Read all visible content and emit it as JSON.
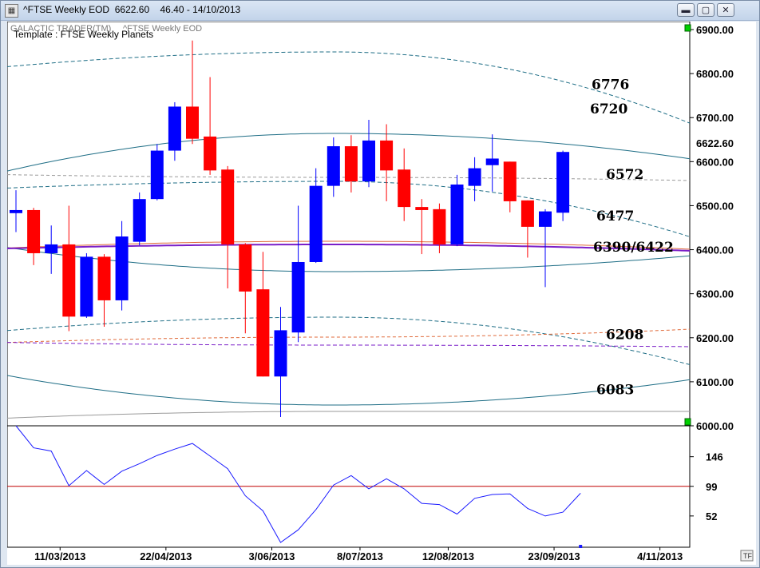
{
  "window": {
    "title": "^FTSE Weekly EOD  6622.60    46.40 - 14/10/2013",
    "minimize_glyph": "▬",
    "maximize_glyph": "▢",
    "close_glyph": "✕"
  },
  "chart_header": {
    "brand": "GALACTIC TRADER(TM)",
    "symbol": "^FTSE Weekly EOD",
    "template": "Template : FTSE Weekly Planets"
  },
  "corner_button": "TF",
  "colors": {
    "up": "#0000ff",
    "down": "#ff0000",
    "teal": "#1f6e86",
    "purple": "#7a1ec8",
    "orange": "#e06a3a",
    "oscillator": "#1a1aff",
    "ref_line": "#c00000",
    "marker": "#00d000"
  },
  "chart_data": [
    {
      "type": "candlestick",
      "ylim": [
        6000,
        6900
      ],
      "y_ticks": [
        6000,
        6100,
        6200,
        6300,
        6400,
        6500,
        6600,
        6700,
        6800,
        6900
      ],
      "y_tick_labels": [
        "6000.00",
        "6100.00",
        "6200.00",
        "6300.00",
        "6400.00",
        "6500.00",
        "6600.00",
        "6700.00",
        "6800.00",
        "6900.00"
      ],
      "last_price_label": "6622.60",
      "last_price": 6622.6,
      "x_labels": [
        "11/03/2013",
        "22/04/2013",
        "3/06/2013",
        "8/07/2013",
        "12/08/2013",
        "23/09/2013",
        "4/11/2013"
      ],
      "x_label_weeks": [
        2.5,
        8.5,
        14.5,
        19.5,
        24.5,
        30.5,
        36.5
      ],
      "candles": [
        {
          "o": 6483,
          "h": 6535,
          "l": 6440,
          "c": 6490
        },
        {
          "o": 6490,
          "h": 6495,
          "l": 6365,
          "c": 6392
        },
        {
          "o": 6392,
          "h": 6455,
          "l": 6345,
          "c": 6412
        },
        {
          "o": 6412,
          "h": 6500,
          "l": 6215,
          "c": 6248
        },
        {
          "o": 6248,
          "h": 6392,
          "l": 6245,
          "c": 6384
        },
        {
          "o": 6384,
          "h": 6390,
          "l": 6225,
          "c": 6285
        },
        {
          "o": 6285,
          "h": 6465,
          "l": 6262,
          "c": 6430
        },
        {
          "o": 6418,
          "h": 6530,
          "l": 6410,
          "c": 6515
        },
        {
          "o": 6515,
          "h": 6640,
          "l": 6512,
          "c": 6625
        },
        {
          "o": 6625,
          "h": 6735,
          "l": 6602,
          "c": 6725
        },
        {
          "o": 6725,
          "h": 6875,
          "l": 6640,
          "c": 6652
        },
        {
          "o": 6657,
          "h": 6792,
          "l": 6570,
          "c": 6580
        },
        {
          "o": 6582,
          "h": 6590,
          "l": 6312,
          "c": 6412
        },
        {
          "o": 6412,
          "h": 6415,
          "l": 6210,
          "c": 6305
        },
        {
          "o": 6310,
          "h": 6395,
          "l": 6112,
          "c": 6112
        },
        {
          "o": 6112,
          "h": 6270,
          "l": 6020,
          "c": 6217
        },
        {
          "o": 6212,
          "h": 6500,
          "l": 6190,
          "c": 6372
        },
        {
          "o": 6372,
          "h": 6585,
          "l": 6370,
          "c": 6545
        },
        {
          "o": 6545,
          "h": 6655,
          "l": 6520,
          "c": 6635
        },
        {
          "o": 6635,
          "h": 6660,
          "l": 6530,
          "c": 6555
        },
        {
          "o": 6555,
          "h": 6695,
          "l": 6542,
          "c": 6648
        },
        {
          "o": 6648,
          "h": 6685,
          "l": 6510,
          "c": 6580
        },
        {
          "o": 6582,
          "h": 6630,
          "l": 6465,
          "c": 6497
        },
        {
          "o": 6497,
          "h": 6515,
          "l": 6390,
          "c": 6490
        },
        {
          "o": 6492,
          "h": 6505,
          "l": 6392,
          "c": 6412
        },
        {
          "o": 6412,
          "h": 6570,
          "l": 6408,
          "c": 6548
        },
        {
          "o": 6545,
          "h": 6610,
          "l": 6510,
          "c": 6585
        },
        {
          "o": 6592,
          "h": 6662,
          "l": 6532,
          "c": 6607
        },
        {
          "o": 6600,
          "h": 6600,
          "l": 6485,
          "c": 6510
        },
        {
          "o": 6512,
          "h": 6512,
          "l": 6382,
          "c": 6452
        },
        {
          "o": 6452,
          "h": 6492,
          "l": 6315,
          "c": 6487
        },
        {
          "o": 6484,
          "h": 6625,
          "l": 6465,
          "c": 6622
        }
      ],
      "level_labels": [
        {
          "text": "6776",
          "value": 6776
        },
        {
          "text": "6720",
          "value": 6720
        },
        {
          "text": "6572",
          "value": 6572
        },
        {
          "text": "6477",
          "value": 6477
        },
        {
          "text": "6390/6422",
          "value": 6406
        },
        {
          "text": "6208",
          "value": 6208
        },
        {
          "text": "6083",
          "value": 6083
        }
      ]
    },
    {
      "type": "line",
      "y_ticks": [
        52,
        99,
        146
      ],
      "y_tick_labels": [
        "52",
        "99",
        "146"
      ],
      "ylim": [
        10,
        195
      ],
      "reference_line": 99,
      "values": [
        195,
        160,
        155,
        100,
        124,
        102,
        123,
        135,
        148,
        158,
        167,
        147,
        127,
        84,
        60,
        10,
        30,
        62,
        101,
        116,
        95,
        111,
        95,
        72,
        70,
        55,
        80,
        86,
        87,
        64,
        52,
        58,
        88
      ]
    }
  ]
}
